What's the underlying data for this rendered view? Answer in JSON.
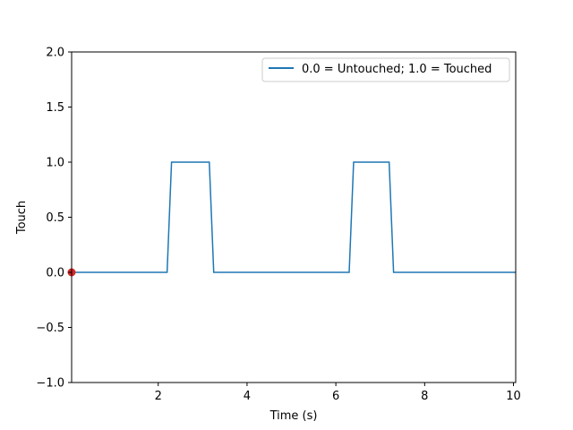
{
  "chart_data": {
    "type": "line",
    "title": "",
    "xlabel": "Time (s)",
    "ylabel": "Touch",
    "xlim": [
      0.05,
      10.05
    ],
    "ylim": [
      -1.0,
      2.0
    ],
    "xticks": [
      2,
      4,
      6,
      8,
      10
    ],
    "xtick_labels": [
      "2",
      "4",
      "6",
      "8",
      "10"
    ],
    "yticks": [
      -1.0,
      -0.5,
      0.0,
      0.5,
      1.0,
      1.5,
      2.0
    ],
    "ytick_labels": [
      "−1.0",
      "−0.5",
      "0.0",
      "0.5",
      "1.0",
      "1.5",
      "2.0"
    ],
    "grid": false,
    "legend": {
      "position": "top-right",
      "entries": [
        "0.0 = Untouched; 1.0 = Touched"
      ]
    },
    "series": [
      {
        "name": "0.0 = Untouched; 1.0 = Touched",
        "color": "#1f77b4",
        "x": [
          0.05,
          2.2,
          2.3,
          3.15,
          3.25,
          6.3,
          6.4,
          7.2,
          7.3,
          10.05
        ],
        "y": [
          0,
          0,
          1,
          1,
          0,
          0,
          1,
          1,
          0,
          0
        ]
      }
    ],
    "marker": {
      "x": 0.05,
      "y": 0,
      "color": "#d62728"
    }
  }
}
